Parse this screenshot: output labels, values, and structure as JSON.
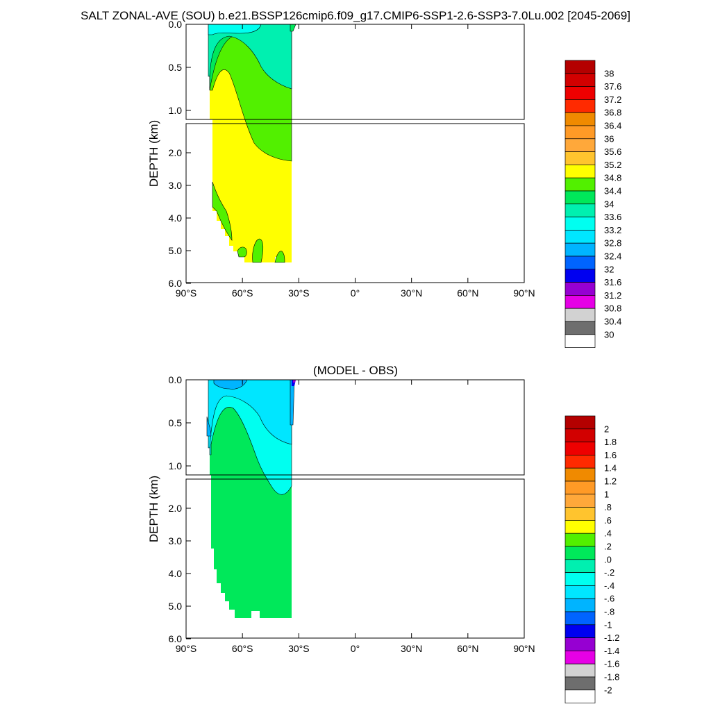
{
  "title": "SALT ZONAL-AVE (SOU) b.e21.BSSP126cmip6.f09_g17.CMIP6-SSP1-2.6-SSP3-7.0Lu.002 [2045-2069]",
  "chart_data": [
    {
      "type": "heatmap",
      "title": "",
      "ylabel": "DEPTH (km)",
      "xlabel": "",
      "x_ticks": [
        "90°S",
        "60°S",
        "30°S",
        "0°",
        "30°N",
        "60°N",
        "90°N"
      ],
      "x_range": [
        -90,
        90
      ],
      "y_ticks_upper": [
        "0.0",
        "0.5",
        "1.0"
      ],
      "y_ticks_lower": [
        "2.0",
        "3.0",
        "4.0",
        "5.0",
        "6.0"
      ],
      "y_range_km": [
        0,
        6
      ],
      "data_extent_lat": [
        -79,
        -34
      ],
      "max_depth_km": 5.4,
      "colorbar_labels": [
        "38",
        "37.6",
        "37.2",
        "36.8",
        "36.4",
        "36",
        "35.6",
        "35.2",
        "34.8",
        "34.4",
        "34",
        "33.6",
        "33.2",
        "32.8",
        "32.4",
        "32",
        "31.6",
        "31.2",
        "30.8",
        "30.4",
        "30"
      ],
      "colorbar_colors": [
        "#b40000",
        "#d20000",
        "#ee0000",
        "#ff2a00",
        "#f08a00",
        "#ff9a26",
        "#ffa83a",
        "#ffc42e",
        "#ffff00",
        "#52f000",
        "#00e85a",
        "#00f0b0",
        "#00fff0",
        "#00e6ff",
        "#00b4ff",
        "#0064ff",
        "#0000f0",
        "#9600d2",
        "#e600e6",
        "#d2d2d2",
        "#6e6e6e",
        "#ffffff"
      ],
      "regions": {
        "surface_band": "33.2",
        "mid_band": "34.4",
        "interior": "34.8-35.2",
        "deep_patches": "34.4"
      }
    },
    {
      "type": "heatmap",
      "title": "(MODEL - OBS)",
      "ylabel": "DEPTH (km)",
      "xlabel": "",
      "x_ticks": [
        "90°S",
        "60°S",
        "30°S",
        "0°",
        "30°N",
        "60°N",
        "90°N"
      ],
      "x_range": [
        -90,
        90
      ],
      "y_ticks_upper": [
        "0.0",
        "0.5",
        "1.0"
      ],
      "y_ticks_lower": [
        "2.0",
        "3.0",
        "4.0",
        "5.0",
        "6.0"
      ],
      "y_range_km": [
        0,
        6
      ],
      "data_extent_lat": [
        -79,
        -34
      ],
      "max_depth_km": 5.4,
      "colorbar_labels": [
        "2",
        "1.8",
        "1.6",
        "1.4",
        "1.2",
        "1",
        ".8",
        ".6",
        ".4",
        ".2",
        ".0",
        "-.2",
        "-.4",
        "-.6",
        "-.8",
        "-1",
        "-1.2",
        "-1.4",
        "-1.6",
        "-1.8",
        "-2"
      ],
      "colorbar_colors": [
        "#b40000",
        "#d20000",
        "#ee0000",
        "#ff2a00",
        "#f08a00",
        "#ff9a26",
        "#ffa83a",
        "#ffc42e",
        "#ffff00",
        "#52f000",
        "#00e85a",
        "#00f0b0",
        "#00fff0",
        "#00e6ff",
        "#00b4ff",
        "#0064ff",
        "#0000f0",
        "#9600d2",
        "#e600e6",
        "#d2d2d2",
        "#6e6e6e",
        "#ffffff"
      ],
      "regions": {
        "surface_band": "-0.6 to -0.8",
        "upper_band": "-0.4 to -0.6",
        "interior": "0.0 to 0.2"
      }
    }
  ]
}
